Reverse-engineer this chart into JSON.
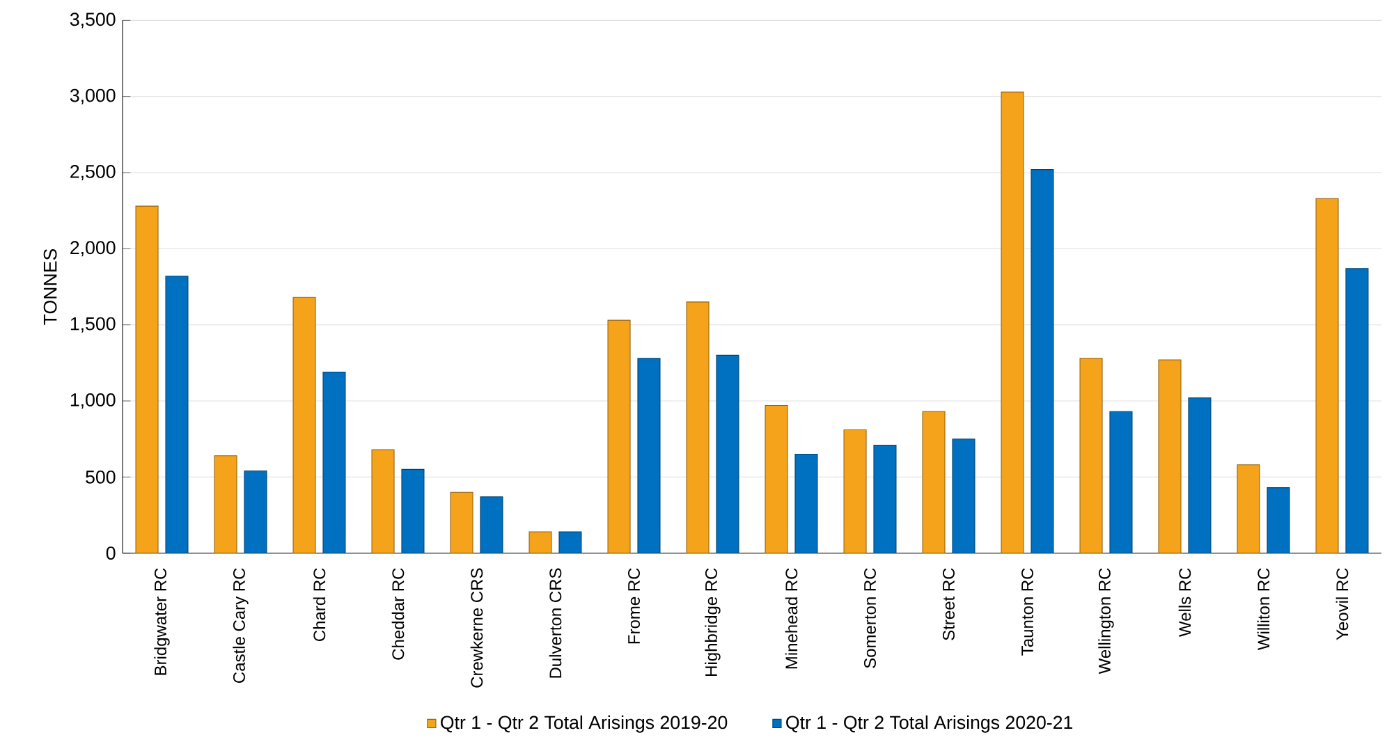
{
  "chart_data": {
    "type": "bar",
    "ylabel": "TONNES",
    "categories": [
      "Bridgwater RC",
      "Castle Cary RC",
      "Chard RC",
      "Cheddar RC",
      "Crewkerne CRS",
      "Dulverton CRS",
      "Frome RC",
      "Highbridge RC",
      "Minehead RC",
      "Somerton RC",
      "Street RC",
      "Taunton RC",
      "Wellington RC",
      "Wells RC",
      "Williton RC",
      "Yeovil RC"
    ],
    "series": [
      {
        "name": "Qtr 1 - Qtr 2 Total Arisings 2019-20",
        "color": "#f5a31a",
        "values": [
          2280,
          640,
          1680,
          680,
          400,
          140,
          1530,
          1650,
          970,
          810,
          930,
          3030,
          1280,
          1270,
          580,
          2330
        ]
      },
      {
        "name": "Qtr 1 - Qtr 2 Total Arisings 2020-21",
        "color": "#0070c0",
        "values": [
          1820,
          540,
          1190,
          550,
          370,
          140,
          1280,
          1300,
          650,
          710,
          750,
          2520,
          930,
          1020,
          430,
          1870
        ]
      }
    ],
    "ylim": [
      0,
      3500
    ],
    "yticks": [
      {
        "value": 0,
        "label": "0"
      },
      {
        "value": 500,
        "label": "500"
      },
      {
        "value": 1000,
        "label": "1,000"
      },
      {
        "value": 1500,
        "label": "1,500"
      },
      {
        "value": 2000,
        "label": "2,000"
      },
      {
        "value": 2500,
        "label": "2,500"
      },
      {
        "value": 3000,
        "label": "3,000"
      },
      {
        "value": 3500,
        "label": "3,500"
      }
    ],
    "grid": "y",
    "legend": "bottom"
  }
}
